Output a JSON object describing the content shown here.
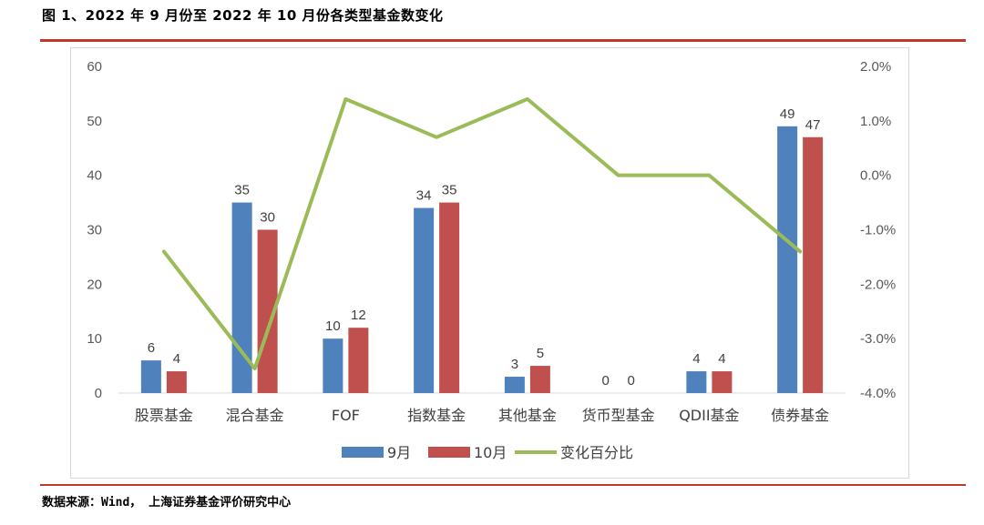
{
  "title": "图 1、2022 年 9 月份至 2022 年 10 月份各类型基金数变化",
  "source": "数据来源：Wind， 上海证券基金评价研究中心",
  "chart_data": {
    "type": "bar",
    "categories": [
      "股票基金",
      "混合基金",
      "FOF",
      "指数基金",
      "其他基金",
      "货币型基金",
      "QDII基金",
      "债券基金"
    ],
    "series": [
      {
        "name": "9月",
        "type": "bar",
        "axis": "left",
        "color": "#4f81bd",
        "values": [
          6,
          35,
          10,
          34,
          3,
          0,
          4,
          49
        ]
      },
      {
        "name": "10月",
        "type": "bar",
        "axis": "left",
        "color": "#c0504d",
        "values": [
          4,
          30,
          12,
          35,
          5,
          0,
          4,
          47
        ]
      },
      {
        "name": "变化百分比",
        "type": "line",
        "axis": "right",
        "color": "#9bbb59",
        "values": [
          -1.4,
          -3.55,
          1.4,
          0.7,
          1.4,
          0.0,
          0.0,
          -1.4
        ]
      }
    ],
    "ylim": [
      0,
      60
    ],
    "yticks": [
      0,
      10,
      20,
      30,
      40,
      50,
      60
    ],
    "y2lim": [
      -4.0,
      2.0
    ],
    "y2ticks": [
      "-4.0%",
      "-3.0%",
      "-2.0%",
      "-1.0%",
      "0.0%",
      "1.0%",
      "2.0%"
    ],
    "legend_position": "bottom",
    "grid": false
  }
}
